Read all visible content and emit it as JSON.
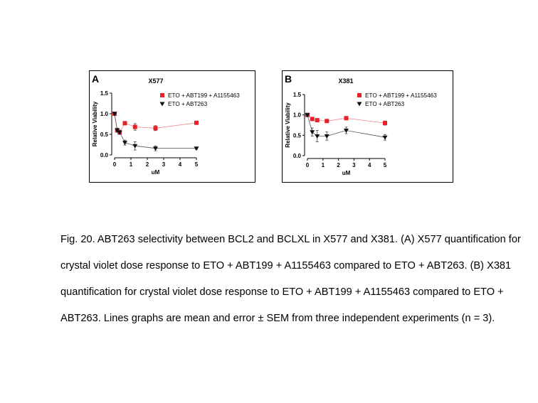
{
  "chart_data": [
    {
      "type": "line",
      "panel_label": "A",
      "title": "X577",
      "xlabel": "uM",
      "ylabel": "Relative Viability",
      "xlim": [
        0,
        5
      ],
      "ylim": [
        0,
        1.5
      ],
      "xticks": [
        "0",
        "1",
        "2",
        "3",
        "4",
        "5"
      ],
      "yticks": [
        "0.0",
        "0.5",
        "1.0",
        "1.5"
      ],
      "legend_position": "top-right",
      "series": [
        {
          "name": "ETO + ABT199 + A1155463",
          "color": "#e8202a",
          "marker": "square",
          "x": [
            0,
            0.16,
            0.31,
            0.63,
            1.25,
            2.5,
            5
          ],
          "y": [
            1.0,
            0.6,
            0.55,
            0.77,
            0.68,
            0.65,
            0.78
          ],
          "err": [
            0.02,
            0.05,
            0.05,
            0.03,
            0.08,
            0.06,
            0.03
          ]
        },
        {
          "name": "ETO + ABT263",
          "color": "#111111",
          "marker": "triangle-down",
          "x": [
            0,
            0.16,
            0.31,
            0.63,
            1.25,
            2.5,
            5
          ],
          "y": [
            1.0,
            0.6,
            0.55,
            0.3,
            0.22,
            0.16,
            0.16
          ],
          "err": [
            0.02,
            0.05,
            0.05,
            0.06,
            0.1,
            0.06,
            0.02
          ]
        }
      ]
    },
    {
      "type": "line",
      "panel_label": "B",
      "title": "X381",
      "xlabel": "uM",
      "ylabel": "Relative Viability",
      "xlim": [
        0,
        5
      ],
      "ylim": [
        0,
        1.5
      ],
      "xticks": [
        "0",
        "1",
        "2",
        "3",
        "4",
        "5"
      ],
      "yticks": [
        "0.0",
        "0.5",
        "1.0",
        "1.5"
      ],
      "legend_position": "top-right",
      "series": [
        {
          "name": "ETO + ABT199 + A1155463",
          "color": "#e8202a",
          "marker": "square",
          "x": [
            0,
            0.31,
            0.63,
            1.25,
            2.5,
            5
          ],
          "y": [
            1.0,
            0.9,
            0.87,
            0.85,
            0.92,
            0.8
          ],
          "err": [
            0.02,
            0.03,
            0.03,
            0.03,
            0.03,
            0.05
          ]
        },
        {
          "name": "ETO + ABT263",
          "color": "#111111",
          "marker": "triangle-down",
          "x": [
            0,
            0.31,
            0.63,
            1.25,
            2.5,
            5
          ],
          "y": [
            1.0,
            0.58,
            0.48,
            0.48,
            0.62,
            0.45
          ],
          "err": [
            0.02,
            0.1,
            0.14,
            0.1,
            0.08,
            0.07
          ]
        }
      ]
    }
  ],
  "caption": {
    "line1": "Fig. 20. ABT263 selectivity between BCL2 and BCLXL in X577 and X381. (A) X577 quantification for",
    "line2": "crystal violet dose response to ETO + ABT199 + A1155463 compared to ETO + ABT263. (B) X381",
    "line3": "quantification for crystal violet dose response to ETO + ABT199 + A1155463 compared to ETO +",
    "line4": "ABT263. Lines graphs are mean and error ± SEM from three independent experiments (n = 3)."
  }
}
